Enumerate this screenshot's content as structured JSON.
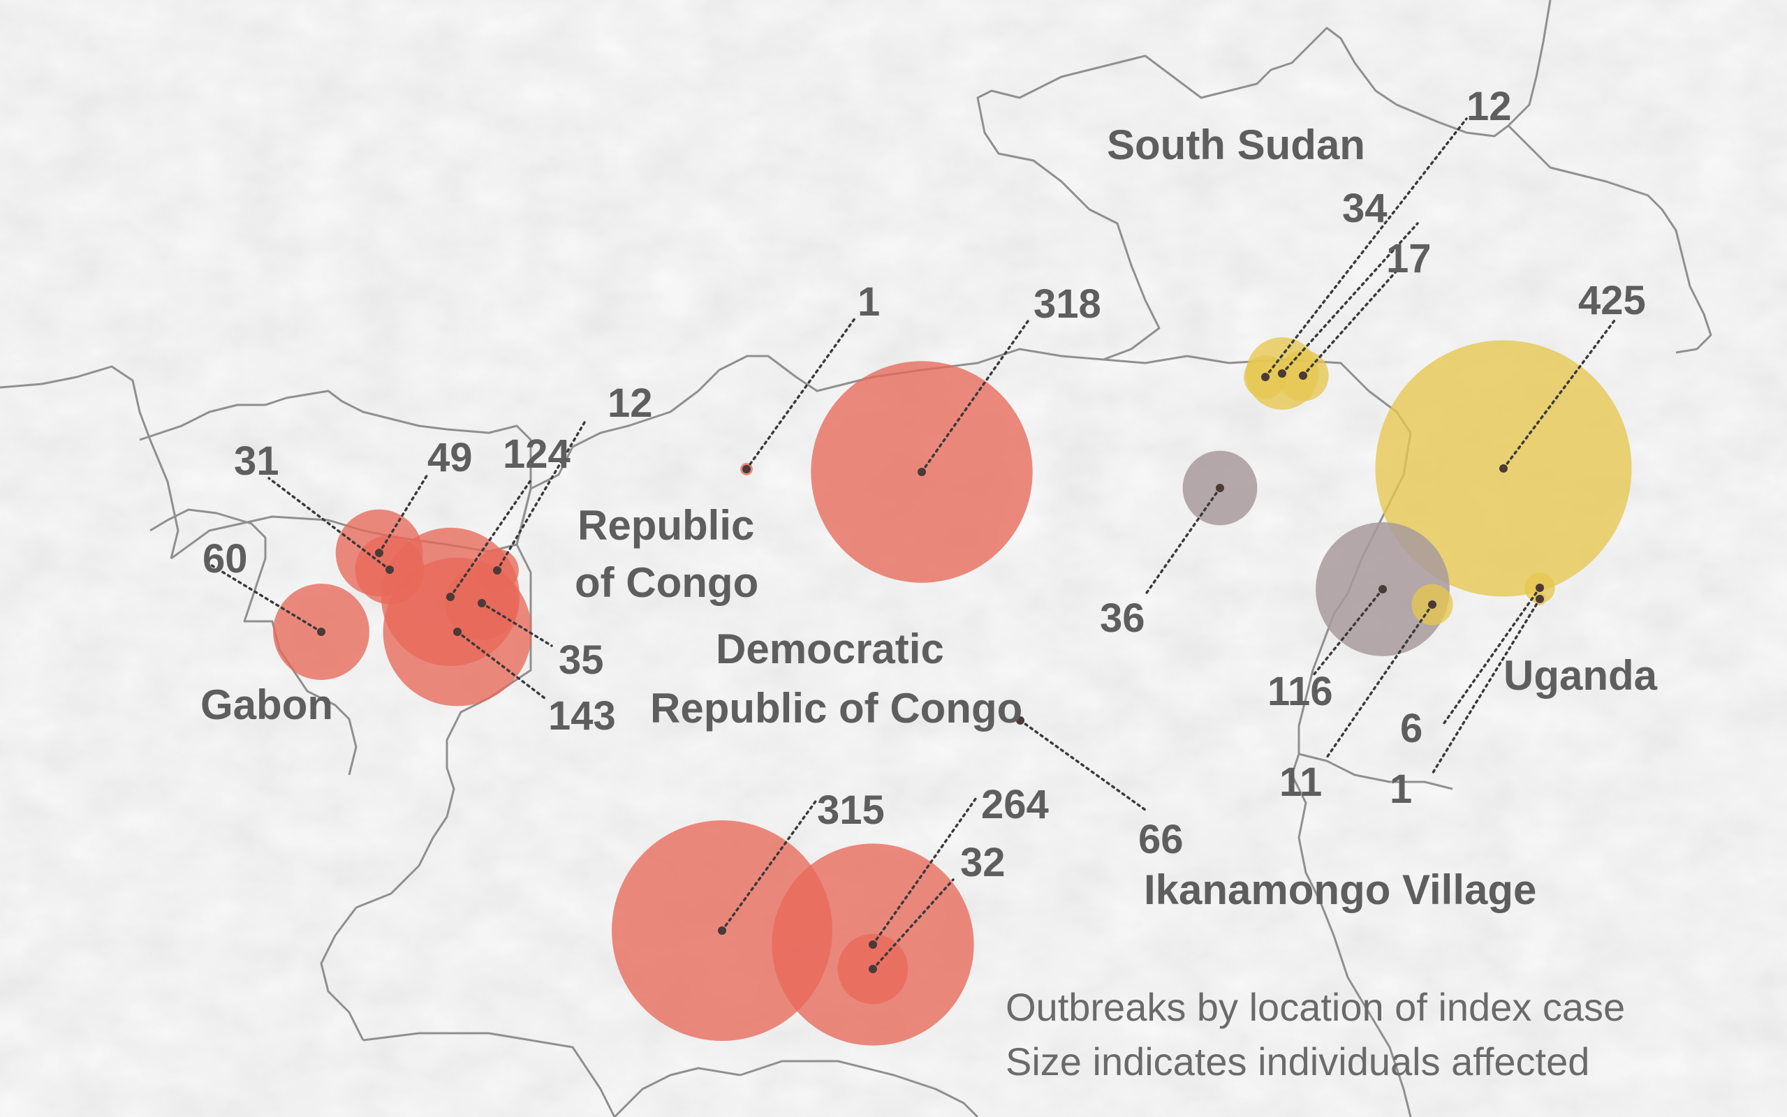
{
  "colors": {
    "background": "#f1f1f1",
    "borders": "#8f8f8f",
    "red_outbreak": "#e8695a",
    "yellow_outbreak": "#e6c64f",
    "gray_outbreak": "#a99a9c",
    "label_text": "#5e5e5e",
    "leader_line": "#3a3a3a"
  },
  "countries": [
    {
      "id": "south-sudan",
      "name": "South Sudan"
    },
    {
      "id": "republic-of-congo",
      "name": "Republic of Congo"
    },
    {
      "id": "drc",
      "name": "Democratic Republic of Congo"
    },
    {
      "id": "gabon",
      "name": "Gabon"
    },
    {
      "id": "uganda",
      "name": "Uganda"
    }
  ],
  "place_labels": [
    {
      "id": "ikanamongo-village",
      "name": "Ikanamongo Village"
    }
  ],
  "outbreaks": [
    {
      "id": "gabon-60",
      "cases": 60,
      "category": "red"
    },
    {
      "id": "gabon-31",
      "cases": 31,
      "category": "red"
    },
    {
      "id": "gabon-49",
      "cases": 49,
      "category": "red"
    },
    {
      "id": "congo-124",
      "cases": 124,
      "category": "red"
    },
    {
      "id": "congo-12",
      "cases": 12,
      "category": "red"
    },
    {
      "id": "congo-35",
      "cases": 35,
      "category": "red"
    },
    {
      "id": "congo-143",
      "cases": 143,
      "category": "red"
    },
    {
      "id": "drc-1",
      "cases": 1,
      "category": "red"
    },
    {
      "id": "drc-318",
      "cases": 318,
      "category": "red"
    },
    {
      "id": "drc-315",
      "cases": 315,
      "category": "red"
    },
    {
      "id": "drc-264",
      "cases": 264,
      "category": "red"
    },
    {
      "id": "drc-32",
      "cases": 32,
      "category": "red"
    },
    {
      "id": "ikanamongo-66",
      "cases": 66,
      "category": "red"
    },
    {
      "id": "sudan-12",
      "cases": 12,
      "category": "yellow"
    },
    {
      "id": "sudan-34",
      "cases": 34,
      "category": "yellow"
    },
    {
      "id": "sudan-17",
      "cases": 17,
      "category": "yellow"
    },
    {
      "id": "uganda-425",
      "cases": 425,
      "category": "yellow"
    },
    {
      "id": "uganda-6",
      "cases": 6,
      "category": "yellow"
    },
    {
      "id": "uganda-1",
      "cases": 1,
      "category": "yellow"
    },
    {
      "id": "uganda-11",
      "cases": 11,
      "category": "yellow"
    },
    {
      "id": "drc-36",
      "cases": 36,
      "category": "gray"
    },
    {
      "id": "drc-116",
      "cases": 116,
      "category": "gray"
    }
  ],
  "legend": {
    "line1": "Outbreaks by location of index case",
    "line2": "Size indicates individuals affected"
  }
}
